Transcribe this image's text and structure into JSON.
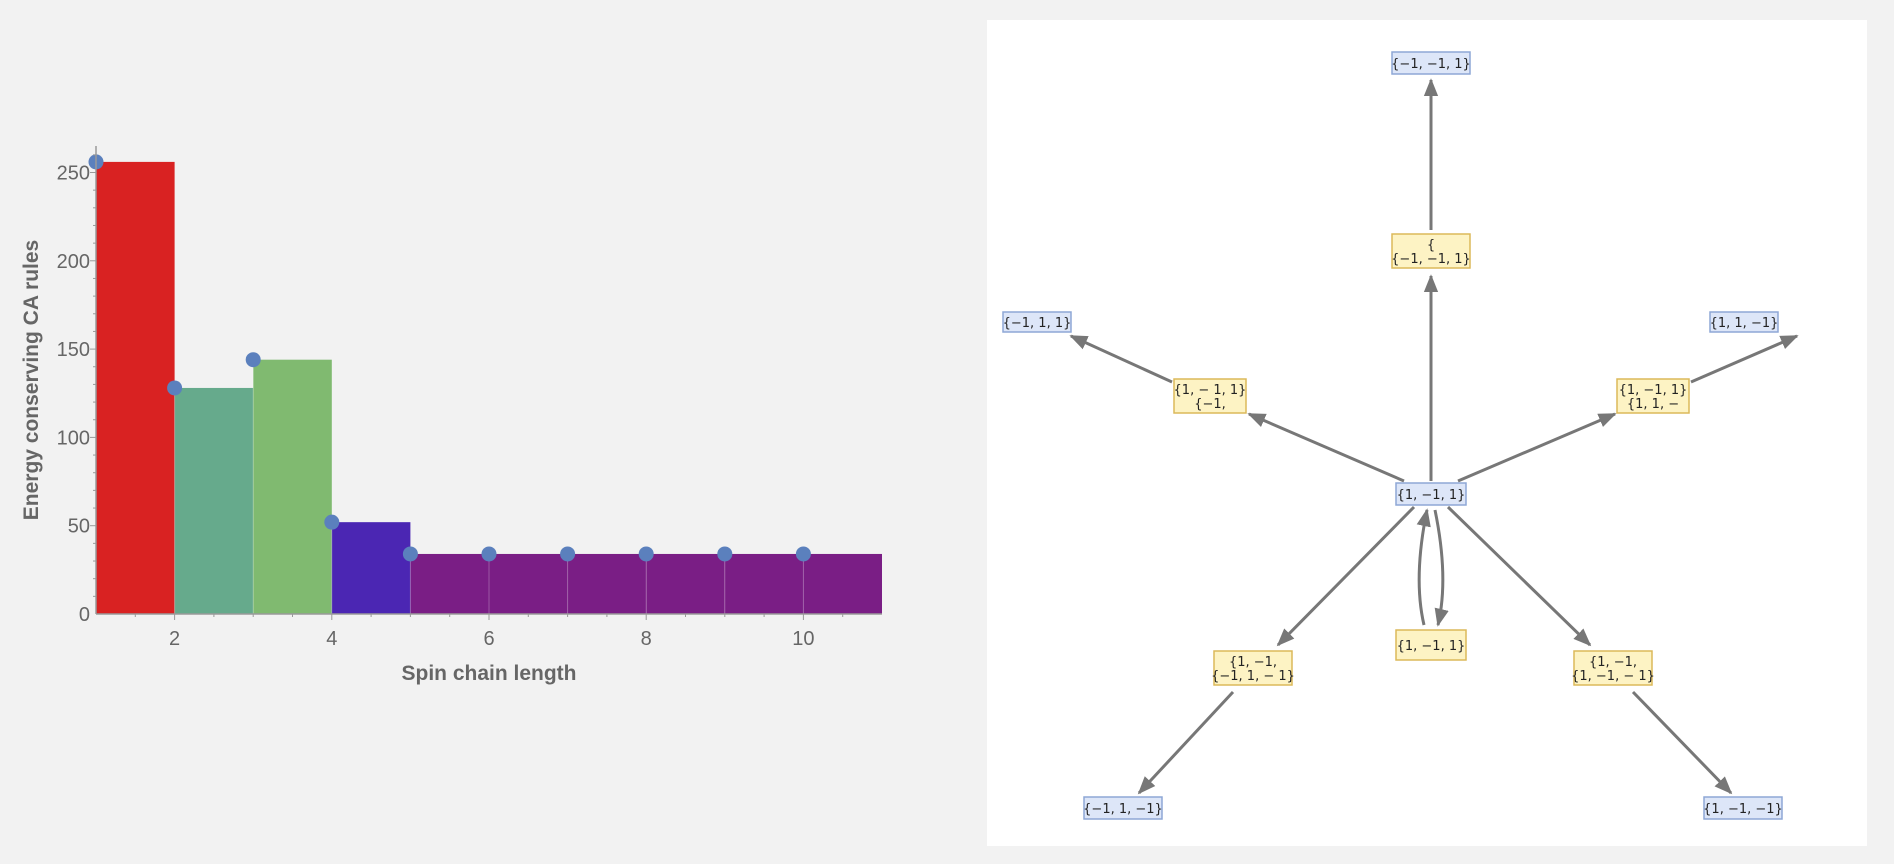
{
  "chart_data": {
    "type": "bar",
    "x": [
      1,
      2,
      3,
      4,
      5,
      6,
      7,
      8,
      9,
      10
    ],
    "values": [
      256,
      128,
      144,
      52,
      34,
      34,
      34,
      34,
      34,
      34
    ],
    "bar_colors": [
      "#d92222",
      "#66aa8c",
      "#80ba70",
      "#4b26b3",
      "#7a1e85",
      "#7a1e85",
      "#7a1e85",
      "#7a1e85",
      "#7a1e85",
      "#7a1e85"
    ],
    "point_color": "#5b80bd",
    "xlabel": "Spin chain length",
    "ylabel": "Energy conserving CA rules",
    "xlim": [
      1,
      11
    ],
    "ylim": [
      0,
      265
    ],
    "xticks": [
      2,
      4,
      6,
      8,
      10
    ],
    "yticks": [
      0,
      50,
      100,
      150,
      200,
      250
    ]
  },
  "graph": {
    "node_fill_blue": "#dde6f8",
    "node_border_blue": "#8ea7d6",
    "node_fill_yellow": "#fdf3c4",
    "node_border_yellow": "#dcb95a",
    "edge_color": "#777777",
    "nodes": [
      {
        "id": "center",
        "kind": "blue",
        "lines": [
          "{1, −1, 1}"
        ]
      },
      {
        "id": "top-leaf",
        "kind": "blue",
        "lines": [
          "{−1, −1, 1}"
        ]
      },
      {
        "id": "top-mid",
        "kind": "yellow",
        "lines": [
          "{",
          "{−1, −1, 1}"
        ]
      },
      {
        "id": "left-leaf",
        "kind": "blue",
        "lines": [
          "{−1, 1, 1}"
        ]
      },
      {
        "id": "left-mid",
        "kind": "yellow",
        "lines": [
          "{1, −  1, 1}",
          "{−1,"
        ]
      },
      {
        "id": "right-leaf",
        "kind": "blue",
        "lines": [
          "{1, 1, −1}"
        ]
      },
      {
        "id": "right-mid",
        "kind": "yellow",
        "lines": [
          "{1, −1,  1}",
          "{1, 1, −"
        ]
      },
      {
        "id": "bottom-mid",
        "kind": "yellow",
        "lines": [
          "{1, −1, 1}"
        ]
      },
      {
        "id": "bl-mid",
        "kind": "yellow",
        "lines": [
          "{1, −1,",
          "{−1, 1, − 1}"
        ]
      },
      {
        "id": "bl-leaf",
        "kind": "blue",
        "lines": [
          "{−1, 1, −1}"
        ]
      },
      {
        "id": "br-mid",
        "kind": "yellow",
        "lines": [
          "{1, −1,",
          "{1, −1, − 1}"
        ]
      },
      {
        "id": "br-leaf",
        "kind": "blue",
        "lines": [
          "{1, −1, −1}"
        ]
      }
    ]
  }
}
